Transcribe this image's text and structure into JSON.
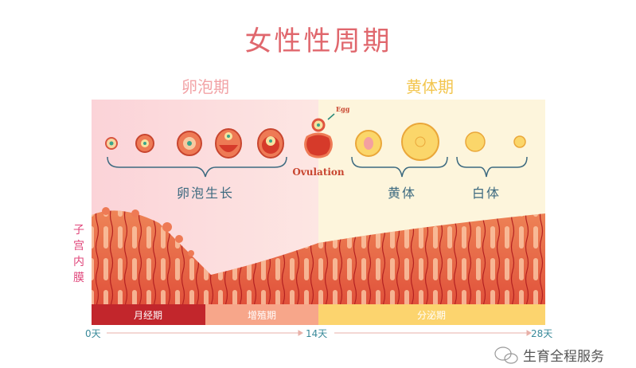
{
  "title": "女性性周期",
  "phases": {
    "follicular": "卵泡期",
    "luteal": "黄体期"
  },
  "ovary": {
    "egg_label": "Egg",
    "ovulation_label": "Ovulation",
    "groups": [
      "卵泡生长",
      "黄体",
      "白体"
    ]
  },
  "endometrium_label": [
    "子",
    "宫",
    "内",
    "膜"
  ],
  "uterine_phases": [
    "月经期",
    "增殖期",
    "分泌期"
  ],
  "timeline": {
    "start": "0天",
    "mid": "14天",
    "end": "28天"
  },
  "watermark": "生育全程服务",
  "colors": {
    "title": "#e0676d",
    "follicular": "#f2a3a6",
    "luteal": "#f3c64f",
    "menstrual": "#c2262c",
    "proliferative": "#f7a68a",
    "secretory": "#fcd46e",
    "axis_text": "#3a8a9a"
  }
}
